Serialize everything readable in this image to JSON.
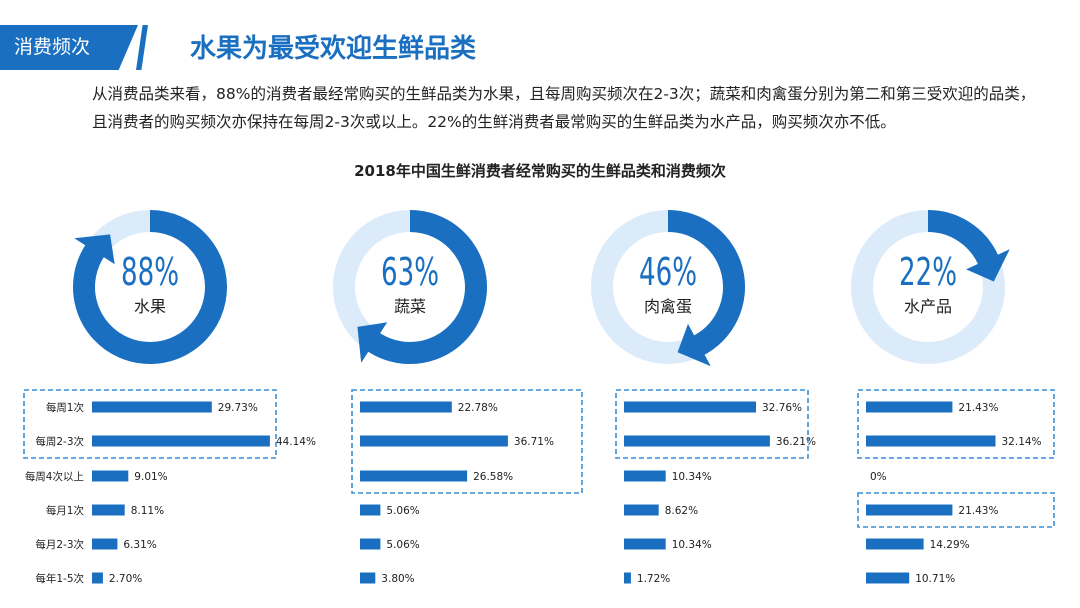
{
  "header": {
    "section_tag": "消费频次",
    "title": "水果为最受欢迎生鲜品类"
  },
  "description": "从消费品类来看，88%的消费者最经常购买的生鲜品类为水果，且每周购买频次在2-3次；蔬菜和肉禽蛋分别为第二和第三受欢迎的品类，且消费者的购买频次亦保持在每周2-3次或以上。22%的生鲜消费者最常购买的生鲜品类为水产品，购买频次亦不低。",
  "colors": {
    "accent": "#1a6fc0",
    "ring_light": "#dcebf9",
    "dash": "#3b8fd6"
  },
  "chart_data": {
    "type": "bar",
    "title": "2018年中国生鲜消费者经常购买的生鲜品类和消费频次",
    "categories": [
      "每周1次",
      "每周2-3次",
      "每周4次以上",
      "每月1次",
      "每月2-3次",
      "每年1-5次"
    ],
    "groups": [
      {
        "name": "水果",
        "share": 88,
        "share_label": "88%",
        "values": [
          29.73,
          44.14,
          9.01,
          8.11,
          6.31,
          2.7
        ],
        "labels": [
          "29.73%",
          "44.14%",
          "9.01%",
          "8.11%",
          "6.31%",
          "2.70%"
        ],
        "highlight": [
          0,
          1
        ]
      },
      {
        "name": "蔬菜",
        "share": 63,
        "share_label": "63%",
        "values": [
          22.78,
          36.71,
          26.58,
          5.06,
          5.06,
          3.8
        ],
        "labels": [
          "22.78%",
          "36.71%",
          "26.58%",
          "5.06%",
          "5.06%",
          "3.80%"
        ],
        "highlight": [
          0,
          1,
          2
        ]
      },
      {
        "name": "肉禽蛋",
        "share": 46,
        "share_label": "46%",
        "values": [
          32.76,
          36.21,
          10.34,
          8.62,
          10.34,
          1.72
        ],
        "labels": [
          "32.76%",
          "36.21%",
          "10.34%",
          "8.62%",
          "10.34%",
          "1.72%"
        ],
        "highlight": [
          0,
          1
        ]
      },
      {
        "name": "水产品",
        "share": 22,
        "share_label": "22%",
        "values": [
          21.43,
          32.14,
          0,
          21.43,
          14.29,
          10.71
        ],
        "labels": [
          "21.43%",
          "32.14%",
          "0%",
          "21.43%",
          "14.29%",
          "10.71%"
        ],
        "highlight": [
          0,
          1,
          3
        ]
      }
    ]
  }
}
